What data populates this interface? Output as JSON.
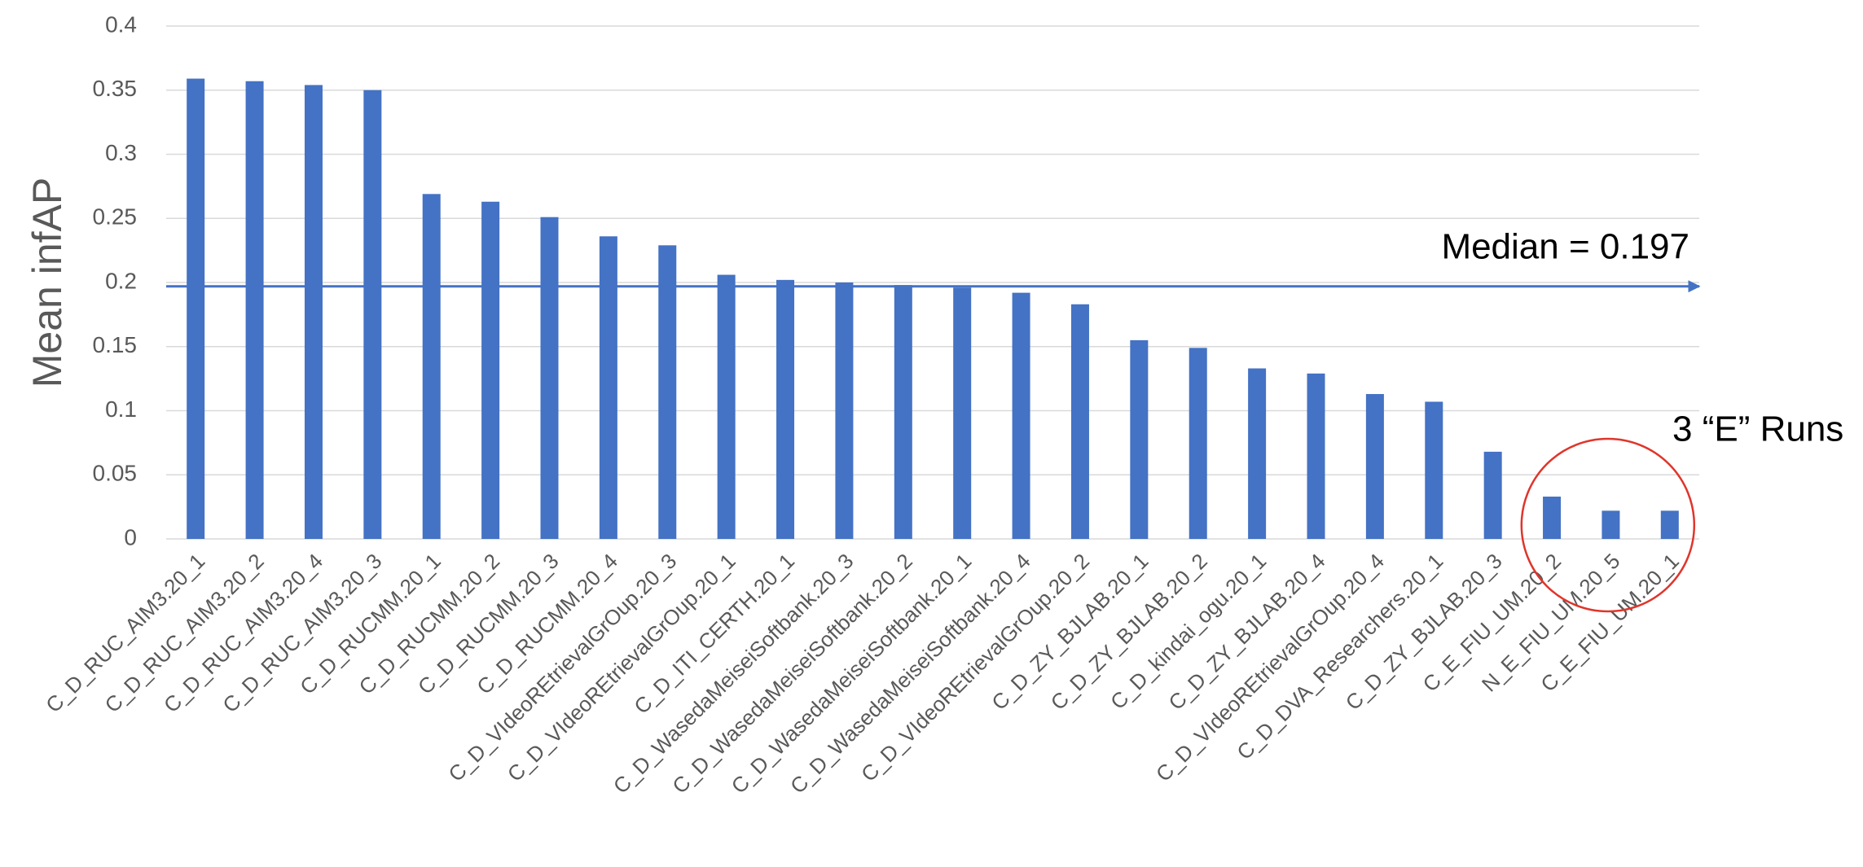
{
  "chart_data": {
    "type": "bar",
    "y_label": "Mean infAP",
    "categories": [
      "C_D_RUC_AIM3.20_1",
      "C_D_RUC_AIM3.20_2",
      "C_D_RUC_AIM3.20_4",
      "C_D_RUC_AIM3.20_3",
      "C_D_RUCMM.20_1",
      "C_D_RUCMM.20_2",
      "C_D_RUCMM.20_3",
      "C_D_RUCMM.20_4",
      "C_D_VIdeoREtrievalGrOup.20_3",
      "C_D_VIdeoREtrievalGrOup.20_1",
      "C_D_ITI_CERTH.20_1",
      "C_D_WasedaMeiseiSoftbank.20_3",
      "C_D_WasedaMeiseiSoftbank.20_2",
      "C_D_WasedaMeiseiSoftbank.20_1",
      "C_D_WasedaMeiseiSoftbank.20_4",
      "C_D_VIdeoREtrievalGrOup.20_2",
      "C_D_ZY_BJLAB.20_1",
      "C_D_ZY_BJLAB.20_2",
      "C_D_kindai_ogu.20_1",
      "C_D_ZY_BJLAB.20_4",
      "C_D_VIdeoREtrievalGrOup.20_4",
      "C_D_DVA_Researchers.20_1",
      "C_D_ZY_BJLAB.20_3",
      "C_E_FIU_UM.20_2",
      "N_E_FIU_UM.20_5",
      "C_E_FIU_UM.20_1"
    ],
    "values": [
      0.359,
      0.357,
      0.354,
      0.35,
      0.269,
      0.263,
      0.251,
      0.236,
      0.229,
      0.206,
      0.202,
      0.2,
      0.198,
      0.196,
      0.192,
      0.183,
      0.155,
      0.149,
      0.133,
      0.129,
      0.113,
      0.107,
      0.068,
      0.033,
      0.022,
      0.022
    ],
    "color": "#4472c4",
    "ylim": [
      0,
      0.4
    ],
    "yticks": [
      0,
      0.05,
      0.1,
      0.15,
      0.2,
      0.25,
      0.3,
      0.35,
      0.4
    ],
    "grid": true,
    "median": {
      "value": 0.197,
      "label": "Median = 0.197"
    },
    "highlight_note": "3 “E” Runs",
    "highlight_color": "#e0352b"
  }
}
